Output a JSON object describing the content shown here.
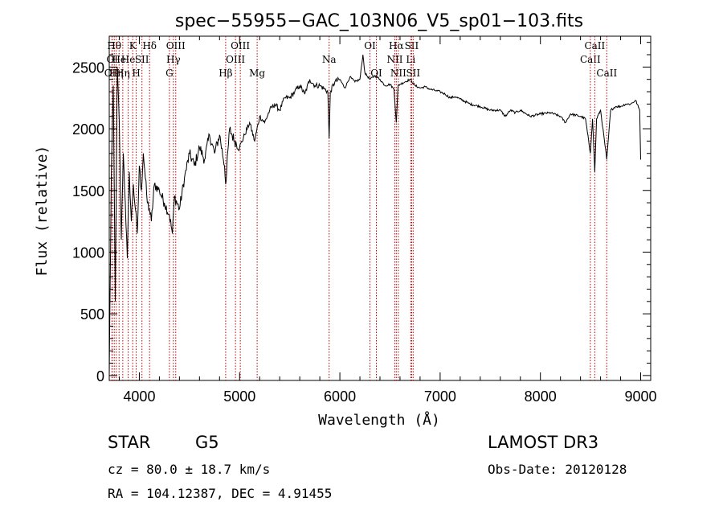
{
  "chart_data": {
    "type": "line",
    "title": "spec−55955−GAC_103N06_V5_sp01−103.fits",
    "xlabel": "Wavelength (Å)",
    "ylabel": "Flux (relative)",
    "xlim": [
      3700,
      9100
    ],
    "ylim": [
      -40,
      2750
    ],
    "x_ticks": [
      {
        "value": 4000,
        "label": "4000"
      },
      {
        "value": 5000,
        "label": "5000"
      },
      {
        "value": 6000,
        "label": "6000"
      },
      {
        "value": 7000,
        "label": "7000"
      },
      {
        "value": 8000,
        "label": "8000"
      },
      {
        "value": 9000,
        "label": "9000"
      }
    ],
    "y_ticks": [
      {
        "value": 0,
        "label": "0"
      },
      {
        "value": 500,
        "label": "500"
      },
      {
        "value": 1000,
        "label": "1000"
      },
      {
        "value": 1500,
        "label": "1500"
      },
      {
        "value": 2000,
        "label": "2000"
      },
      {
        "value": 2500,
        "label": "2500"
      }
    ],
    "series": [
      {
        "name": "flux",
        "x": [
          3700,
          3720,
          3740,
          3760,
          3780,
          3800,
          3820,
          3840,
          3860,
          3880,
          3900,
          3920,
          3940,
          3960,
          3980,
          4000,
          4020,
          4040,
          4060,
          4080,
          4100,
          4120,
          4150,
          4200,
          4250,
          4300,
          4330,
          4350,
          4400,
          4450,
          4500,
          4550,
          4600,
          4650,
          4700,
          4750,
          4800,
          4850,
          4861,
          4900,
          4950,
          5000,
          5050,
          5100,
          5150,
          5200,
          5250,
          5300,
          5350,
          5400,
          5450,
          5500,
          5550,
          5600,
          5650,
          5700,
          5750,
          5800,
          5850,
          5880,
          5893,
          5905,
          5950,
          6000,
          6050,
          6100,
          6150,
          6200,
          6230,
          6250,
          6300,
          6350,
          6400,
          6450,
          6500,
          6540,
          6563,
          6580,
          6600,
          6650,
          6700,
          6750,
          6800,
          6850,
          6900,
          6950,
          7000,
          7050,
          7100,
          7150,
          7200,
          7300,
          7400,
          7500,
          7600,
          7650,
          7700,
          7750,
          7800,
          7900,
          8000,
          8100,
          8200,
          8250,
          8300,
          8400,
          8450,
          8498,
          8520,
          8542,
          8560,
          8600,
          8662,
          8700,
          8750,
          8800,
          8850,
          8900,
          8950,
          8990,
          9000
        ],
        "y": [
          0,
          1600,
          2350,
          600,
          2500,
          2050,
          1100,
          1800,
          1400,
          950,
          1650,
          1250,
          1550,
          1350,
          1150,
          1700,
          1500,
          1800,
          1600,
          1400,
          1350,
          1250,
          1550,
          1500,
          1400,
          1300,
          1150,
          1450,
          1350,
          1600,
          1800,
          1700,
          1850,
          1750,
          1950,
          1800,
          1950,
          1700,
          1550,
          2000,
          1900,
          1850,
          1950,
          2050,
          1900,
          2100,
          2050,
          2150,
          2200,
          2150,
          2250,
          2250,
          2300,
          2350,
          2280,
          2400,
          2350,
          2350,
          2320,
          2300,
          1920,
          2300,
          2380,
          2400,
          2330,
          2420,
          2380,
          2400,
          2600,
          2450,
          2400,
          2430,
          2400,
          2350,
          2360,
          2320,
          2050,
          2350,
          2360,
          2380,
          2400,
          2350,
          2330,
          2340,
          2320,
          2310,
          2300,
          2280,
          2250,
          2260,
          2240,
          2200,
          2180,
          2150,
          2150,
          2100,
          2150,
          2130,
          2150,
          2100,
          2120,
          2130,
          2100,
          2050,
          2120,
          2100,
          2080,
          1800,
          2080,
          1650,
          2080,
          2150,
          1750,
          2150,
          2180,
          2180,
          2200,
          2200,
          2230,
          2150,
          1750
        ]
      }
    ],
    "spectral_lines": [
      {
        "wavelength": 3727,
        "label": "OII",
        "row": 2
      },
      {
        "wavelength": 3730,
        "label": "OI",
        "row": 1
      },
      {
        "wavelength": 3750,
        "label": "Hθ",
        "row": 0
      },
      {
        "wavelength": 3770,
        "label": "Hη",
        "row": 2
      },
      {
        "wavelength": 3798,
        "label": "He",
        "row": 1
      },
      {
        "wavelength": 3835,
        "label": "Hη",
        "row": 2
      },
      {
        "wavelength": 3889,
        "label": "He",
        "row": 1
      },
      {
        "wavelength": 3934,
        "label": "K",
        "row": 0
      },
      {
        "wavelength": 3969,
        "label": "H",
        "row": 2
      },
      {
        "wavelength": 4026,
        "label": "SII",
        "row": 1
      },
      {
        "wavelength": 4102,
        "label": "Hδ",
        "row": 0
      },
      {
        "wavelength": 4300,
        "label": "G",
        "row": 2
      },
      {
        "wavelength": 4340,
        "label": "Hγ",
        "row": 1
      },
      {
        "wavelength": 4363,
        "label": "OIII",
        "row": 0
      },
      {
        "wavelength": 4861,
        "label": "Hβ",
        "row": 2
      },
      {
        "wavelength": 4959,
        "label": "OIII",
        "row": 1
      },
      {
        "wavelength": 5007,
        "label": "OIII",
        "row": 0
      },
      {
        "wavelength": 5175,
        "label": "Mg",
        "row": 2
      },
      {
        "wavelength": 5893,
        "label": "Na",
        "row": 1
      },
      {
        "wavelength": 6300,
        "label": "OI",
        "row": 0
      },
      {
        "wavelength": 6364,
        "label": "OI",
        "row": 2
      },
      {
        "wavelength": 6548,
        "label": "NII",
        "row": 1
      },
      {
        "wavelength": 6563,
        "label": "Hα",
        "row": 0
      },
      {
        "wavelength": 6583,
        "label": "NII",
        "row": 2
      },
      {
        "wavelength": 6707,
        "label": "Li",
        "row": 1
      },
      {
        "wavelength": 6716,
        "label": "SII",
        "row": 0
      },
      {
        "wavelength": 6731,
        "label": "SII",
        "row": 2
      },
      {
        "wavelength": 8498,
        "label": "CaII",
        "row": 1
      },
      {
        "wavelength": 8542,
        "label": "CaII",
        "row": 0
      },
      {
        "wavelength": 8662,
        "label": "CaII",
        "row": 2
      }
    ]
  },
  "info": {
    "class_text": "STAR",
    "subclass_text": "G5",
    "survey_text": "LAMOST DR3",
    "cz_text": "cz = 80.0 ± 18.7 km/s",
    "obs_date_text": "Obs-Date: 20120128",
    "coords_text": "RA = 104.12387, DEC =   4.91455"
  },
  "colors": {
    "axes": "#000000",
    "spectrum": "#000000",
    "line_marker": "#c00000"
  }
}
